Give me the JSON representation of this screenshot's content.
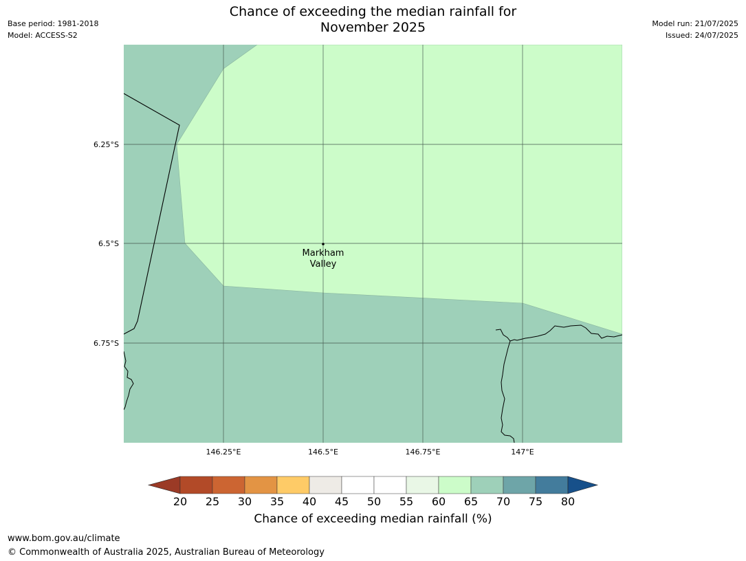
{
  "header": {
    "base_period": "Base period: 1981-2018",
    "model": "Model: ACCESS-S2",
    "model_run": "Model run: 21/07/2025",
    "issued": "Issued: 24/07/2025",
    "title_line1": "Chance of exceeding the median rainfall for",
    "title_line2": "November 2025"
  },
  "map": {
    "lat_ticks": [
      "6.25°S",
      "6.5°S",
      "6.75°S"
    ],
    "lon_ticks": [
      "146.25°E",
      "146.5°E",
      "146.75°E",
      "147°E"
    ],
    "place": {
      "name_line1": "Markham",
      "name_line2": "Valley"
    },
    "region_colors": {
      "65-70": "#9ed0b9",
      "60-65": "#ccfcc9"
    }
  },
  "colorbar": {
    "ticks": [
      "20",
      "25",
      "30",
      "35",
      "40",
      "45",
      "50",
      "55",
      "60",
      "65",
      "70",
      "75",
      "80"
    ],
    "under_color": "#9b3a26",
    "over_color": "#17508a",
    "segment_colors": [
      "#b24a28",
      "#cc6532",
      "#e39444",
      "#fecb67",
      "#eeebe6",
      "#ffffff",
      "#ffffff",
      "#e9f7e6",
      "#ccfcc9",
      "#9ed0b9",
      "#6ea5a8",
      "#437c9c"
    ],
    "label": "Chance of exceeding median rainfall (%)"
  },
  "footer": {
    "url": "www.bom.gov.au/climate",
    "copyright": "© Commonwealth of Australia 2025, Australian Bureau of Meteorology"
  }
}
